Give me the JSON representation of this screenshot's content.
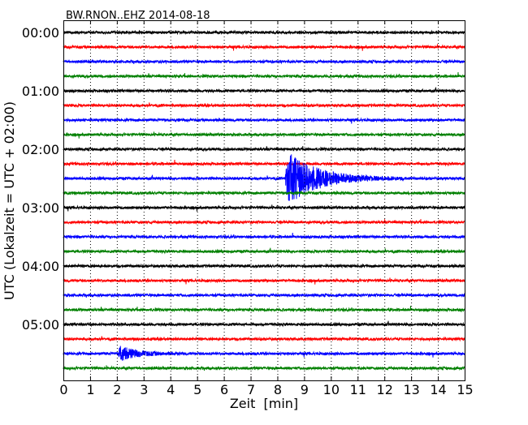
{
  "chart_data": {
    "type": "line",
    "title": "BW.RNON..EHZ 2014-08-18",
    "xlabel": "Zeit  [min]",
    "ylabel": "UTC (Lokalzeit = UTC + 02:00)",
    "xlim": [
      0,
      15
    ],
    "x_ticks": [
      "0",
      "1",
      "2",
      "3",
      "4",
      "5",
      "6",
      "7",
      "8",
      "9",
      "10",
      "11",
      "12",
      "13",
      "14",
      "15"
    ],
    "y_tick_labels": [
      "00:00",
      "01:00",
      "02:00",
      "03:00",
      "04:00",
      "05:00"
    ],
    "trace_interval_minutes": 15,
    "trace_count": 24,
    "trace_colors": [
      "#000000",
      "#ff0000",
      "#0000ff",
      "#008000"
    ],
    "grid": "vertical dotted lines at each minute",
    "events": [
      {
        "trace_start": "02:30",
        "onset_minute": 8.3,
        "duration_minutes": 4.5,
        "peak_relative": 1.9
      },
      {
        "trace_start": "05:30",
        "onset_minute": 2.05,
        "duration_minutes": 2.5,
        "peak_relative": 0.55
      }
    ]
  }
}
